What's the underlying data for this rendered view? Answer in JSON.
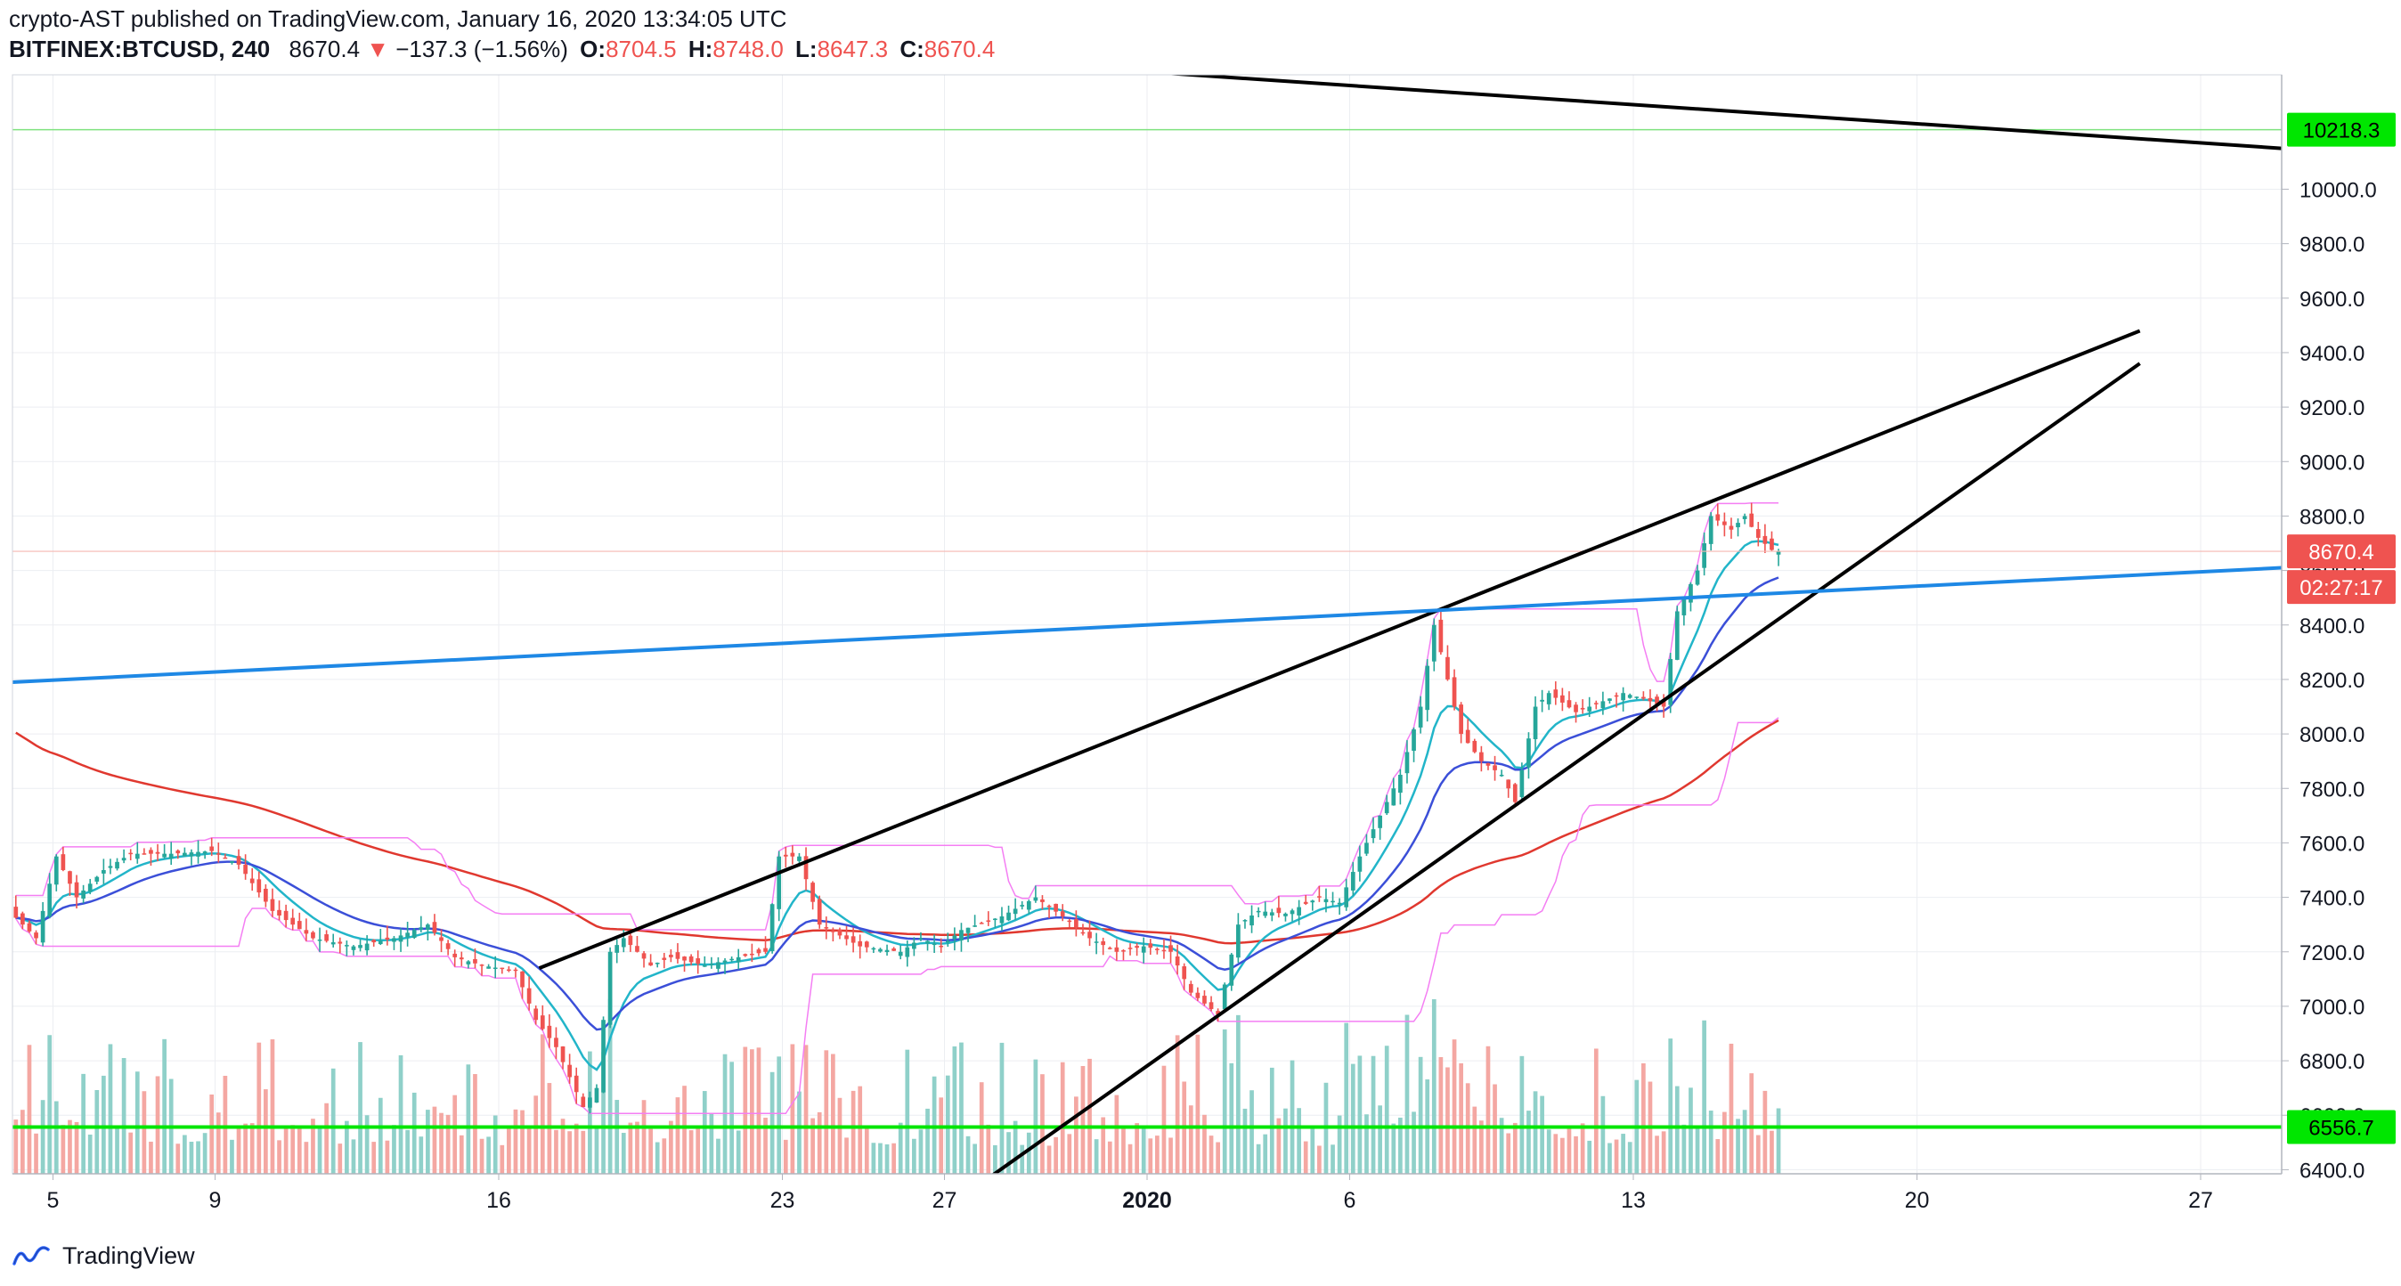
{
  "header": {
    "publish_line": "crypto-AST published on TradingView.com, January 16, 2020 13:34:05 UTC",
    "symbol": "BITFINEX:BTCUSD, 240",
    "last": "8670.4",
    "change_arrow": "▼",
    "change": "−137.3 (−1.56%)",
    "open_label": "O:",
    "open": "8704.5",
    "high_label": "H:",
    "high": "8748.0",
    "low_label": "L:",
    "low": "8647.3",
    "close_label": "C:",
    "close": "8670.4"
  },
  "footer": {
    "brand": "TradingView"
  },
  "colors": {
    "up": "#26a69a",
    "down": "#ef5350",
    "up_volume": "#8fd0c9",
    "down_volume": "#f4a7a2",
    "ema_fast": "#22b5c9",
    "ema_slow": "#3b4fd8",
    "ma_long": "#e0382f",
    "channel": "#f47ef3",
    "trend_blue": "#1e88e5",
    "level_green": "#00e600",
    "price_tag": "#ef5350"
  },
  "chart_data": {
    "type": "candlestick",
    "symbol": "BITFINEX:BTCUSD",
    "timeframe": "240",
    "x_tick_labels": [
      "5",
      "9",
      "16",
      "23",
      "27",
      "2020",
      "6",
      "13",
      "20",
      "27"
    ],
    "x_ticks": [
      {
        "label": "5",
        "date": "2019-12-05"
      },
      {
        "label": "9",
        "date": "2019-12-09"
      },
      {
        "label": "16",
        "date": "2019-12-16"
      },
      {
        "label": "23",
        "date": "2019-12-23"
      },
      {
        "label": "27",
        "date": "2019-12-27"
      },
      {
        "label": "2020",
        "date": "2020-01-01"
      },
      {
        "label": "6",
        "date": "2020-01-06"
      },
      {
        "label": "13",
        "date": "2020-01-13"
      },
      {
        "label": "20",
        "date": "2020-01-20"
      },
      {
        "label": "27",
        "date": "2020-01-27"
      }
    ],
    "y_tick_labels": [
      "10000.0",
      "9800.0",
      "9600.0",
      "9400.0",
      "9200.0",
      "9000.0",
      "8800.0",
      "8600.0",
      "8400.0",
      "8200.0",
      "8000.0",
      "7800.0",
      "7600.0",
      "7400.0",
      "7200.0",
      "7000.0",
      "6800.0",
      "6600.0",
      "6400.0"
    ],
    "y_ticks": [
      10000,
      9800,
      9600,
      9400,
      9200,
      9000,
      8800,
      8600,
      8400,
      8200,
      8000,
      7800,
      7600,
      7400,
      7200,
      7000,
      6800,
      6600,
      6400
    ],
    "ylim": [
      6385,
      10420
    ],
    "x_range": [
      "2019-12-04",
      "2020-01-29"
    ],
    "last_price": {
      "label": "8670.4",
      "value": 8670.4,
      "countdown": "02:27:17"
    },
    "horizontal_levels": [
      {
        "label": "10218.3",
        "value": 10218.3
      },
      {
        "label": "6556.7",
        "value": 6556.7
      }
    ],
    "price_path": [
      [
        "2019-12-04T00:00",
        7350
      ],
      [
        "2019-12-04T16:00",
        7250
      ],
      [
        "2019-12-05T04:00",
        7550
      ],
      [
        "2019-12-05T16:00",
        7400
      ],
      [
        "2019-12-06T08:00",
        7500
      ],
      [
        "2019-12-07T00:00",
        7560
      ],
      [
        "2019-12-08T00:00",
        7560
      ],
      [
        "2019-12-09T00:00",
        7570
      ],
      [
        "2019-12-09T16:00",
        7520
      ],
      [
        "2019-12-10T12:00",
        7350
      ],
      [
        "2019-12-11T12:00",
        7250
      ],
      [
        "2019-12-12T12:00",
        7220
      ],
      [
        "2019-12-13T12:00",
        7250
      ],
      [
        "2019-12-14T08:00",
        7300
      ],
      [
        "2019-12-15T00:00",
        7180
      ],
      [
        "2019-12-15T16:00",
        7150
      ],
      [
        "2019-12-16T12:00",
        7130
      ],
      [
        "2019-12-17T00:00",
        6950
      ],
      [
        "2019-12-17T12:00",
        6850
      ],
      [
        "2019-12-18T04:00",
        6630
      ],
      [
        "2019-12-18T12:00",
        6700
      ],
      [
        "2019-12-18T20:00",
        7200
      ],
      [
        "2019-12-19T04:00",
        7250
      ],
      [
        "2019-12-19T20:00",
        7150
      ],
      [
        "2019-12-20T08:00",
        7180
      ],
      [
        "2019-12-21T04:00",
        7150
      ],
      [
        "2019-12-22T00:00",
        7180
      ],
      [
        "2019-12-22T16:00",
        7200
      ],
      [
        "2019-12-23T00:00",
        7550
      ],
      [
        "2019-12-23T12:00",
        7550
      ],
      [
        "2019-12-24T00:00",
        7300
      ],
      [
        "2019-12-25T00:00",
        7220
      ],
      [
        "2019-12-26T00:00",
        7200
      ],
      [
        "2019-12-26T12:00",
        7250
      ],
      [
        "2019-12-27T00:00",
        7220
      ],
      [
        "2019-12-27T12:00",
        7280
      ],
      [
        "2019-12-28T12:00",
        7330
      ],
      [
        "2019-12-29T08:00",
        7400
      ],
      [
        "2019-12-30T00:00",
        7330
      ],
      [
        "2019-12-30T16:00",
        7250
      ],
      [
        "2019-12-31T08:00",
        7200
      ],
      [
        "2020-01-01T00:00",
        7220
      ],
      [
        "2020-01-01T16:00",
        7200
      ],
      [
        "2020-01-02T04:00",
        7050
      ],
      [
        "2020-01-02T20:00",
        6970
      ],
      [
        "2020-01-03T08:00",
        7300
      ],
      [
        "2020-01-03T20:00",
        7350
      ],
      [
        "2020-01-04T12:00",
        7340
      ],
      [
        "2020-01-05T08:00",
        7400
      ],
      [
        "2020-01-05T20:00",
        7380
      ],
      [
        "2020-01-06T08:00",
        7550
      ],
      [
        "2020-01-06T20:00",
        7700
      ],
      [
        "2020-01-07T08:00",
        7850
      ],
      [
        "2020-01-07T20:00",
        8100
      ],
      [
        "2020-01-08T04:00",
        8400
      ],
      [
        "2020-01-08T12:00",
        8200
      ],
      [
        "2020-01-08T20:00",
        8000
      ],
      [
        "2020-01-09T08:00",
        7900
      ],
      [
        "2020-01-09T20:00",
        7850
      ],
      [
        "2020-01-10T04:00",
        7750
      ],
      [
        "2020-01-10T16:00",
        8100
      ],
      [
        "2020-01-11T00:00",
        8150
      ],
      [
        "2020-01-11T16:00",
        8080
      ],
      [
        "2020-01-12T08:00",
        8120
      ],
      [
        "2020-01-12T20:00",
        8150
      ],
      [
        "2020-01-13T08:00",
        8130
      ],
      [
        "2020-01-13T20:00",
        8100
      ],
      [
        "2020-01-14T04:00",
        8450
      ],
      [
        "2020-01-14T16:00",
        8600
      ],
      [
        "2020-01-15T00:00",
        8800
      ],
      [
        "2020-01-15T12:00",
        8750
      ],
      [
        "2020-01-15T20:00",
        8800
      ],
      [
        "2020-01-16T04:00",
        8720
      ],
      [
        "2020-01-16T13:00",
        8670
      ]
    ],
    "trend_lines": [
      {
        "name": "resistance",
        "from": [
          "2019-12-29T12:00",
          10456
        ],
        "to": [
          "2020-01-29T00:00",
          10150
        ]
      },
      {
        "name": "rising-upper",
        "from": [
          "2019-12-17T00:00",
          7140
        ],
        "to": [
          "2020-01-25T12:00",
          9480
        ]
      },
      {
        "name": "rising-lower",
        "from": [
          "2019-12-28T00:00",
          6360
        ],
        "to": [
          "2020-01-25T12:00",
          9360
        ]
      },
      {
        "name": "long-term-blue",
        "from": [
          "2019-12-04T00:00",
          8190
        ],
        "to": [
          "2020-01-29T00:00",
          8610
        ]
      }
    ]
  }
}
